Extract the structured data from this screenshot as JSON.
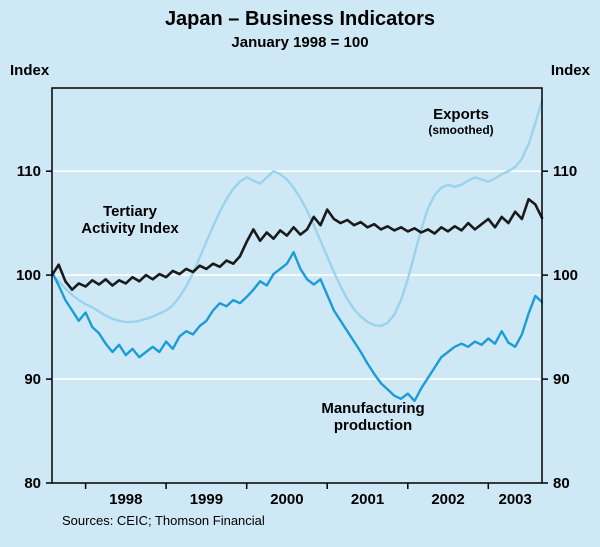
{
  "chart_data": {
    "type": "line",
    "title": "Japan – Business Indicators",
    "subtitle": "January 1998 = 100",
    "ylabel_left": "Index",
    "ylabel_right": "Index",
    "source": "Sources: CEIC; Thomson Financial",
    "ylim": [
      80,
      118
    ],
    "yticks": [
      80,
      90,
      100,
      110
    ],
    "gridlines": [
      90,
      100,
      110
    ],
    "x_start_year": 1997,
    "x_start_month": 8,
    "x_end_year": 2003,
    "x_end_month": 9,
    "x_tick_years": [
      1998,
      1999,
      2000,
      2001,
      2002,
      2003
    ],
    "legend_position": "inline-annotations",
    "grid": "horizontal-white",
    "colors": {
      "exports": "#9bd2ee",
      "manufacturing": "#1a9cd8",
      "tertiary": "#1a1a1a",
      "background": "#cee9f5",
      "gridline": "#ffffff",
      "frame": "#000000"
    },
    "labels": {
      "tertiary_line1": "Tertiary",
      "tertiary_line2": "Activity Index",
      "exports_line1": "Exports",
      "exports_line2": "(smoothed)",
      "manufacturing_line1": "Manufacturing",
      "manufacturing_line2": "production"
    },
    "series": [
      {
        "name": "Exports (smoothed)",
        "key": "exports",
        "values": [
          100.0,
          99.4,
          98.7,
          98.1,
          97.6,
          97.2,
          96.9,
          96.5,
          96.1,
          95.8,
          95.6,
          95.5,
          95.5,
          95.6,
          95.8,
          96.0,
          96.3,
          96.6,
          97.1,
          97.9,
          98.9,
          100.2,
          101.7,
          103.2,
          104.7,
          106.1,
          107.3,
          108.3,
          109.0,
          109.4,
          109.1,
          108.8,
          109.4,
          110.0,
          109.7,
          109.2,
          108.4,
          107.4,
          106.2,
          104.8,
          103.3,
          101.8,
          100.3,
          98.9,
          97.7,
          96.7,
          96.0,
          95.5,
          95.2,
          95.1,
          95.4,
          96.2,
          97.6,
          99.6,
          102.0,
          104.4,
          106.4,
          107.7,
          108.4,
          108.7,
          108.5,
          108.7,
          109.1,
          109.4,
          109.2,
          109.0,
          109.3,
          109.7,
          110.0,
          110.4,
          111.2,
          112.6,
          114.6,
          116.8
        ]
      },
      {
        "name": "Manufacturing production",
        "key": "manufacturing",
        "values": [
          100.3,
          99.0,
          97.6,
          96.6,
          95.6,
          96.4,
          95.0,
          94.4,
          93.4,
          92.6,
          93.3,
          92.3,
          92.9,
          92.1,
          92.6,
          93.1,
          92.6,
          93.6,
          92.9,
          94.1,
          94.6,
          94.3,
          95.1,
          95.6,
          96.6,
          97.3,
          97.0,
          97.6,
          97.3,
          97.9,
          98.6,
          99.4,
          99.0,
          100.1,
          100.6,
          101.1,
          102.2,
          100.6,
          99.6,
          99.1,
          99.6,
          98.1,
          96.6,
          95.6,
          94.6,
          93.6,
          92.6,
          91.5,
          90.5,
          89.6,
          89.0,
          88.4,
          88.1,
          88.6,
          87.9,
          89.1,
          90.1,
          91.1,
          92.1,
          92.6,
          93.1,
          93.4,
          93.1,
          93.6,
          93.3,
          93.9,
          93.4,
          94.6,
          93.5,
          93.1,
          94.3,
          96.3,
          98.0,
          97.4
        ]
      },
      {
        "name": "Tertiary Activity Index",
        "key": "tertiary",
        "values": [
          100.0,
          101.0,
          99.4,
          98.6,
          99.2,
          98.9,
          99.5,
          99.1,
          99.6,
          99.0,
          99.5,
          99.2,
          99.8,
          99.4,
          100.0,
          99.6,
          100.1,
          99.8,
          100.4,
          100.1,
          100.6,
          100.3,
          100.9,
          100.6,
          101.1,
          100.8,
          101.4,
          101.1,
          101.8,
          103.2,
          104.4,
          103.3,
          104.1,
          103.5,
          104.3,
          103.8,
          104.6,
          103.9,
          104.4,
          105.6,
          104.8,
          106.3,
          105.4,
          105.0,
          105.3,
          104.8,
          105.1,
          104.6,
          104.9,
          104.4,
          104.7,
          104.3,
          104.6,
          104.2,
          104.5,
          104.1,
          104.4,
          104.0,
          104.6,
          104.2,
          104.7,
          104.3,
          105.0,
          104.4,
          104.9,
          105.4,
          104.6,
          105.6,
          105.0,
          106.1,
          105.4,
          107.3,
          106.8,
          105.5
        ]
      }
    ]
  }
}
